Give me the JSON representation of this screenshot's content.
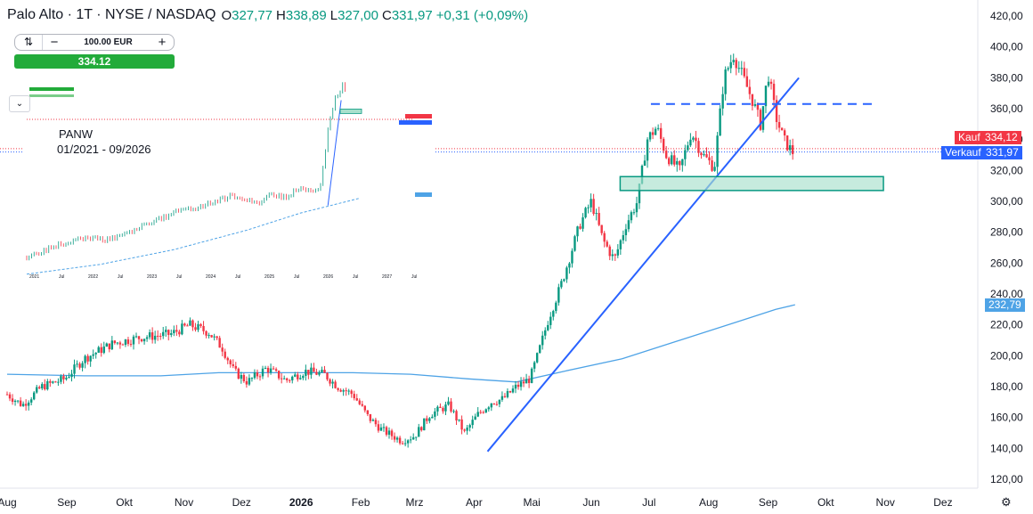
{
  "header": {
    "symbol": "Palo Alto · 1T · NYSE / NASDAQ",
    "o_label": "O",
    "o_value": "327,77",
    "h_label": "H",
    "h_value": "338,89",
    "l_label": "L",
    "l_value": "327,00",
    "c_label": "C",
    "c_value": "331,97",
    "change": "+0,31 (+0,09%)"
  },
  "trade_panel": {
    "amount": "100.00 EUR",
    "buy_price": "334.12"
  },
  "price_tags": {
    "kauf_label": "Kauf",
    "kauf_value": "334,12",
    "verkauf_label": "Verkauf",
    "verkauf_value": "331,97",
    "ma_value": "232,79"
  },
  "colors": {
    "up": "#089981",
    "down": "#f23645",
    "ma": "#4ea3e6",
    "trend": "#2962ff",
    "kauf": "#f23645",
    "verkauf": "#2962ff",
    "zone": "#a8e0cc"
  },
  "icons": {
    "settings": "gear-icon",
    "collapse": "chevron-down-icon",
    "swap": "swap-icon"
  },
  "inset": {
    "title": "PANW",
    "subtitle": "01/2021 - 09/2026"
  },
  "chart_data": {
    "type": "candlestick",
    "title": "",
    "xlabel": "",
    "ylabel": "",
    "ylim": [
      115,
      428
    ],
    "y_ticks": [
      420,
      400,
      380,
      360,
      340,
      320,
      300,
      280,
      260,
      240,
      220,
      200,
      180,
      160,
      140,
      120
    ],
    "y_tick_labels": [
      "420,00",
      "400,00",
      "380,00",
      "360,00",
      "340,00",
      "320,00",
      "300,00",
      "280,00",
      "260,00",
      "240,00",
      "220,00",
      "200,00",
      "180,00",
      "160,00",
      "140,00",
      "120,00"
    ],
    "x_ticks": [
      {
        "label": "Aug",
        "t": 0
      },
      {
        "label": "Sep",
        "t": 31
      },
      {
        "label": "Okt",
        "t": 61
      },
      {
        "label": "Nov",
        "t": 92
      },
      {
        "label": "Dez",
        "t": 122
      },
      {
        "label": "2026",
        "t": 153
      },
      {
        "label": "Feb",
        "t": 184
      },
      {
        "label": "Mrz",
        "t": 212
      },
      {
        "label": "Apr",
        "t": 243
      },
      {
        "label": "Mai",
        "t": 273
      },
      {
        "label": "Jun",
        "t": 304
      },
      {
        "label": "Jul",
        "t": 334
      },
      {
        "label": "Aug",
        "t": 365
      },
      {
        "label": "Sep",
        "t": 396
      },
      {
        "label": "Okt",
        "t": 426
      },
      {
        "label": "Nov",
        "t": 457
      },
      {
        "label": "Dez",
        "t": 487
      }
    ],
    "price_path": [
      [
        0,
        175
      ],
      [
        8,
        168
      ],
      [
        18,
        180
      ],
      [
        30,
        185
      ],
      [
        40,
        198
      ],
      [
        55,
        208
      ],
      [
        70,
        212
      ],
      [
        85,
        214
      ],
      [
        95,
        220
      ],
      [
        105,
        215
      ],
      [
        112,
        205
      ],
      [
        118,
        190
      ],
      [
        125,
        183
      ],
      [
        135,
        192
      ],
      [
        145,
        184
      ],
      [
        155,
        190
      ],
      [
        165,
        188
      ],
      [
        172,
        180
      ],
      [
        180,
        175
      ],
      [
        188,
        160
      ],
      [
        195,
        152
      ],
      [
        205,
        145
      ],
      [
        212,
        148
      ],
      [
        220,
        162
      ],
      [
        230,
        168
      ],
      [
        238,
        150
      ],
      [
        245,
        162
      ],
      [
        252,
        170
      ],
      [
        258,
        172
      ],
      [
        265,
        180
      ],
      [
        272,
        185
      ],
      [
        276,
        200
      ],
      [
        282,
        225
      ],
      [
        288,
        245
      ],
      [
        293,
        265
      ],
      [
        298,
        285
      ],
      [
        304,
        300
      ],
      [
        310,
        275
      ],
      [
        316,
        262
      ],
      [
        322,
        285
      ],
      [
        328,
        300
      ],
      [
        333,
        340
      ],
      [
        338,
        348
      ],
      [
        343,
        330
      ],
      [
        350,
        320
      ],
      [
        356,
        345
      ],
      [
        362,
        330
      ],
      [
        368,
        322
      ],
      [
        373,
        380
      ],
      [
        378,
        395
      ],
      [
        383,
        380
      ],
      [
        388,
        365
      ],
      [
        392,
        350
      ],
      [
        396,
        383
      ],
      [
        400,
        355
      ],
      [
        404,
        340
      ],
      [
        408,
        333
      ],
      [
        410,
        330
      ]
    ],
    "moving_average": [
      [
        0,
        188
      ],
      [
        40,
        187
      ],
      [
        80,
        187
      ],
      [
        110,
        189
      ],
      [
        150,
        189
      ],
      [
        180,
        189
      ],
      [
        210,
        188
      ],
      [
        240,
        185
      ],
      [
        265,
        183
      ],
      [
        290,
        190
      ],
      [
        320,
        198
      ],
      [
        350,
        210
      ],
      [
        380,
        222
      ],
      [
        400,
        230
      ],
      [
        410,
        233
      ]
    ],
    "trendline": [
      [
        250,
        138
      ],
      [
        412,
        380
      ]
    ],
    "resistance_level": 363,
    "support_zone": [
      307,
      316
    ],
    "last_close": 331.97,
    "ask": 334.12,
    "ma_last": 232.79
  },
  "inset_chart": {
    "x_tick_labels": [
      "2021",
      "Jul",
      "2022",
      "Jul",
      "2023",
      "Jul",
      "2024",
      "Jul",
      "2025",
      "Jul",
      "2026",
      "Jul",
      "2027",
      "Jul"
    ]
  }
}
